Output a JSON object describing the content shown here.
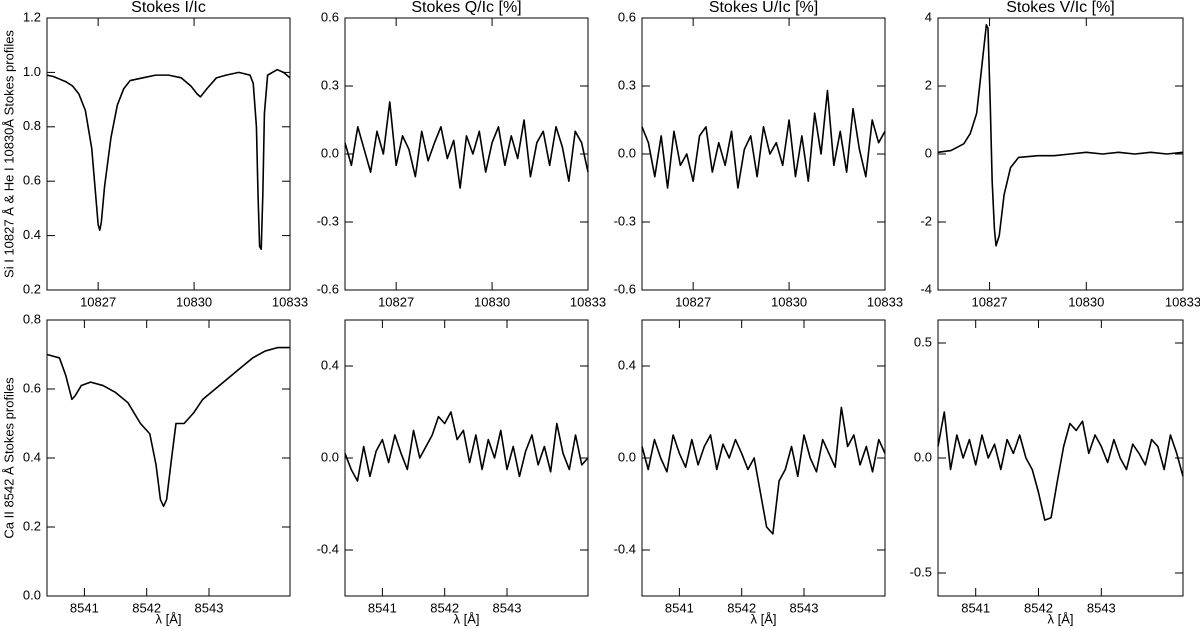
{
  "chart_data": [
    {
      "type": "line",
      "title": "Stokes I/Ic",
      "ylabel": "Si I 10827 Å & He I 10830Å Stokes profiles",
      "color": "#000000",
      "x": [
        10825.4,
        10825.6,
        10825.8,
        10826.0,
        10826.2,
        10826.4,
        10826.6,
        10826.8,
        10826.9,
        10827.0,
        10827.05,
        10827.1,
        10827.2,
        10827.4,
        10827.6,
        10827.8,
        10828.0,
        10828.4,
        10828.8,
        10829.2,
        10829.6,
        10829.9,
        10830.1,
        10830.2,
        10830.4,
        10830.7,
        10831.0,
        10831.4,
        10831.75,
        10831.85,
        10831.95,
        10832.0,
        10832.05,
        10832.1,
        10832.15,
        10832.2,
        10832.3,
        10832.6,
        10832.8,
        10833.0
      ],
      "values": [
        0.99,
        0.985,
        0.975,
        0.965,
        0.95,
        0.92,
        0.86,
        0.72,
        0.58,
        0.44,
        0.42,
        0.45,
        0.58,
        0.76,
        0.88,
        0.94,
        0.97,
        0.98,
        0.99,
        0.99,
        0.98,
        0.95,
        0.92,
        0.91,
        0.94,
        0.98,
        0.99,
        1.0,
        0.99,
        0.96,
        0.8,
        0.55,
        0.36,
        0.35,
        0.55,
        0.85,
        0.99,
        1.01,
        1.0,
        0.98
      ],
      "xlim": [
        10825.4,
        10833
      ],
      "ylim": [
        0.2,
        1.2
      ],
      "xticks": [
        10827,
        10830,
        10833
      ],
      "yticks": [
        0.2,
        0.4,
        0.6,
        0.8,
        {
          "value": 1,
          "label": "1.0"
        },
        1.2
      ]
    },
    {
      "type": "line",
      "title": "Stokes Q/Ic [%]",
      "color": "#000000",
      "x": [
        10825.4,
        10825.6,
        10825.8,
        10826.0,
        10826.2,
        10826.4,
        10826.6,
        10826.8,
        10827.0,
        10827.2,
        10827.4,
        10827.6,
        10827.8,
        10828.0,
        10828.2,
        10828.4,
        10828.6,
        10828.8,
        10829.0,
        10829.2,
        10829.4,
        10829.6,
        10829.8,
        10830.0,
        10830.2,
        10830.4,
        10830.6,
        10830.8,
        10831.0,
        10831.2,
        10831.4,
        10831.6,
        10831.8,
        10832.0,
        10832.2,
        10832.4,
        10832.6,
        10832.8,
        10833.0
      ],
      "values": [
        0.05,
        -0.05,
        0.12,
        0.02,
        -0.08,
        0.1,
        0.0,
        0.23,
        -0.05,
        0.08,
        0.02,
        -0.1,
        0.1,
        -0.03,
        0.05,
        0.12,
        -0.02,
        0.06,
        -0.15,
        0.08,
        0.0,
        0.1,
        -0.08,
        0.05,
        0.12,
        -0.05,
        0.08,
        -0.02,
        0.15,
        -0.1,
        0.05,
        0.1,
        -0.05,
        0.12,
        0.03,
        -0.12,
        0.1,
        0.05,
        -0.08
      ],
      "xlim": [
        10825.4,
        10833
      ],
      "ylim": [
        -0.6,
        0.6
      ],
      "xticks": [
        10827,
        10830,
        10833
      ],
      "yticks": [
        -0.6,
        -0.3,
        {
          "value": 0,
          "label": "0.0"
        },
        0.3,
        0.6
      ]
    },
    {
      "type": "line",
      "title": "Stokes U/Ic [%]",
      "color": "#000000",
      "x": [
        10825.4,
        10825.6,
        10825.8,
        10826.0,
        10826.2,
        10826.4,
        10826.6,
        10826.8,
        10827.0,
        10827.2,
        10827.4,
        10827.6,
        10827.8,
        10828.0,
        10828.2,
        10828.4,
        10828.6,
        10828.8,
        10829.0,
        10829.2,
        10829.4,
        10829.6,
        10829.8,
        10830.0,
        10830.2,
        10830.4,
        10830.6,
        10830.8,
        10831.0,
        10831.2,
        10831.4,
        10831.6,
        10831.8,
        10832.0,
        10832.2,
        10832.4,
        10832.6,
        10832.8,
        10833.0
      ],
      "values": [
        0.12,
        0.05,
        -0.1,
        0.08,
        -0.15,
        0.1,
        -0.05,
        0.0,
        -0.12,
        0.08,
        0.12,
        -0.08,
        0.05,
        -0.05,
        0.1,
        -0.15,
        0.02,
        0.08,
        -0.1,
        0.12,
        0.0,
        0.05,
        -0.05,
        0.15,
        -0.1,
        0.08,
        -0.12,
        0.18,
        0.0,
        0.28,
        -0.05,
        0.1,
        -0.08,
        0.2,
        0.02,
        -0.1,
        0.15,
        0.05,
        0.1
      ],
      "xlim": [
        10825.4,
        10833
      ],
      "ylim": [
        -0.6,
        0.6
      ],
      "xticks": [
        10827,
        10830,
        10833
      ],
      "yticks": [
        -0.6,
        -0.3,
        {
          "value": 0,
          "label": "0.0"
        },
        0.3,
        0.6
      ]
    },
    {
      "type": "line",
      "title": "Stokes V/Ic [%]",
      "color": "#000000",
      "x": [
        10825.4,
        10825.8,
        10826.2,
        10826.4,
        10826.6,
        10826.75,
        10826.9,
        10826.95,
        10827.02,
        10827.08,
        10827.15,
        10827.2,
        10827.3,
        10827.45,
        10827.65,
        10827.9,
        10828.5,
        10829.0,
        10829.5,
        10830.0,
        10830.5,
        10831.0,
        10831.5,
        10832.0,
        10832.5,
        10833.0
      ],
      "values": [
        0.05,
        0.1,
        0.3,
        0.6,
        1.2,
        2.5,
        3.8,
        3.7,
        1.5,
        -0.8,
        -2.2,
        -2.7,
        -2.4,
        -1.2,
        -0.4,
        -0.1,
        -0.05,
        -0.05,
        0.0,
        0.05,
        0.0,
        0.05,
        0.0,
        0.05,
        0.0,
        0.05
      ],
      "xlim": [
        10825.4,
        10833
      ],
      "ylim": [
        -4,
        4
      ],
      "xticks": [
        10827,
        10830,
        10833
      ],
      "yticks": [
        -4,
        -2,
        0,
        2,
        4
      ]
    },
    {
      "type": "line",
      "ylabel": "Ca II 8542 Å Stokes profiles",
      "xlabel": "λ [Å]",
      "color": "#000000",
      "x": [
        8540.4,
        8540.6,
        8540.7,
        8540.8,
        8540.85,
        8540.95,
        8541.1,
        8541.3,
        8541.5,
        8541.7,
        8541.9,
        8542.05,
        8542.15,
        8542.22,
        8542.27,
        8542.32,
        8542.4,
        8542.47,
        8542.6,
        8542.75,
        8542.9,
        8543.1,
        8543.3,
        8543.5,
        8543.7,
        8543.9,
        8544.1,
        8544.3
      ],
      "values": [
        0.7,
        0.69,
        0.64,
        0.57,
        0.58,
        0.61,
        0.62,
        0.61,
        0.59,
        0.56,
        0.5,
        0.47,
        0.38,
        0.28,
        0.26,
        0.28,
        0.4,
        0.5,
        0.5,
        0.53,
        0.57,
        0.6,
        0.63,
        0.66,
        0.69,
        0.71,
        0.72,
        0.72
      ],
      "xlim": [
        8540.4,
        8544.3
      ],
      "ylim": [
        0,
        0.8
      ],
      "xticks": [
        8541,
        8542,
        8543
      ],
      "yticks": [
        {
          "value": 0,
          "label": "0.0"
        },
        0.2,
        0.4,
        0.6,
        0.8
      ]
    },
    {
      "type": "line",
      "xlabel": "λ [Å]",
      "color": "#000000",
      "x": [
        8540.4,
        8540.5,
        8540.6,
        8540.7,
        8540.8,
        8540.9,
        8541.0,
        8541.1,
        8541.2,
        8541.3,
        8541.4,
        8541.5,
        8541.6,
        8541.7,
        8541.8,
        8541.9,
        8542.0,
        8542.1,
        8542.2,
        8542.3,
        8542.4,
        8542.5,
        8542.6,
        8542.7,
        8542.8,
        8542.9,
        8543.0,
        8543.1,
        8543.2,
        8543.3,
        8543.4,
        8543.5,
        8543.6,
        8543.7,
        8543.8,
        8543.9,
        8544.0,
        8544.1,
        8544.2,
        8544.3
      ],
      "values": [
        0.02,
        -0.05,
        -0.1,
        0.05,
        -0.08,
        0.03,
        0.08,
        -0.02,
        0.1,
        0.02,
        -0.05,
        0.12,
        0.0,
        0.05,
        0.1,
        0.18,
        0.15,
        0.2,
        0.08,
        0.12,
        -0.02,
        0.1,
        -0.05,
        0.08,
        0.0,
        0.12,
        -0.05,
        0.05,
        -0.08,
        0.03,
        0.1,
        -0.03,
        0.05,
        -0.06,
        0.15,
        0.02,
        -0.05,
        0.1,
        -0.03,
        0.0
      ],
      "xlim": [
        8540.4,
        8544.3
      ],
      "ylim": [
        -0.6,
        0.6
      ],
      "xticks": [
        8541,
        8542,
        8543
      ],
      "yticks": [
        -0.4,
        {
          "value": 0,
          "label": "0.0"
        },
        0.4
      ]
    },
    {
      "type": "line",
      "xlabel": "λ [Å]",
      "color": "#000000",
      "x": [
        8540.4,
        8540.5,
        8540.6,
        8540.7,
        8540.8,
        8540.9,
        8541.0,
        8541.1,
        8541.2,
        8541.3,
        8541.4,
        8541.5,
        8541.6,
        8541.7,
        8541.8,
        8541.9,
        8542.0,
        8542.1,
        8542.2,
        8542.3,
        8542.4,
        8542.5,
        8542.6,
        8542.7,
        8542.8,
        8542.9,
        8543.0,
        8543.1,
        8543.2,
        8543.3,
        8543.4,
        8543.5,
        8543.6,
        8543.7,
        8543.8,
        8543.9,
        8544.0,
        8544.1,
        8544.2,
        8544.3
      ],
      "values": [
        0.05,
        -0.05,
        0.08,
        0.0,
        -0.06,
        0.1,
        0.02,
        -0.04,
        0.08,
        -0.03,
        0.05,
        0.1,
        -0.05,
        0.06,
        0.0,
        0.08,
        0.02,
        -0.05,
        0.0,
        -0.15,
        -0.3,
        -0.33,
        -0.1,
        -0.05,
        0.05,
        -0.08,
        0.1,
        0.0,
        -0.06,
        0.08,
        0.02,
        -0.04,
        0.22,
        0.05,
        0.1,
        -0.03,
        0.05,
        -0.06,
        0.08,
        0.02
      ],
      "xlim": [
        8540.4,
        8544.3
      ],
      "ylim": [
        -0.6,
        0.6
      ],
      "xticks": [
        8541,
        8542,
        8543
      ],
      "yticks": [
        -0.4,
        {
          "value": 0,
          "label": "0.0"
        },
        0.4
      ]
    },
    {
      "type": "line",
      "xlabel": "λ [Å]",
      "color": "#000000",
      "x": [
        8540.4,
        8540.5,
        8540.6,
        8540.7,
        8540.8,
        8540.9,
        8541.0,
        8541.1,
        8541.2,
        8541.3,
        8541.4,
        8541.5,
        8541.6,
        8541.7,
        8541.8,
        8541.9,
        8542.0,
        8542.1,
        8542.2,
        8542.3,
        8542.4,
        8542.5,
        8542.6,
        8542.7,
        8542.8,
        8542.9,
        8543.0,
        8543.1,
        8543.2,
        8543.3,
        8543.4,
        8543.5,
        8543.6,
        8543.7,
        8543.8,
        8543.9,
        8544.0,
        8544.1,
        8544.2,
        8544.3
      ],
      "values": [
        0.05,
        0.2,
        -0.05,
        0.1,
        0.0,
        0.08,
        -0.03,
        0.1,
        0.0,
        0.06,
        -0.05,
        0.08,
        0.02,
        0.1,
        0.0,
        -0.05,
        -0.15,
        -0.27,
        -0.26,
        -0.1,
        0.05,
        0.15,
        0.12,
        0.16,
        0.02,
        0.1,
        0.05,
        -0.02,
        0.08,
        0.0,
        -0.05,
        0.06,
        0.02,
        -0.03,
        0.08,
        0.05,
        -0.05,
        0.1,
        0.02,
        -0.08
      ],
      "xlim": [
        8540.4,
        8544.3
      ],
      "ylim": [
        -0.6,
        0.6
      ],
      "xticks": [
        8541,
        8542,
        8543
      ],
      "yticks": [
        -0.5,
        {
          "value": 0,
          "label": "0.0"
        },
        0.5
      ]
    }
  ]
}
